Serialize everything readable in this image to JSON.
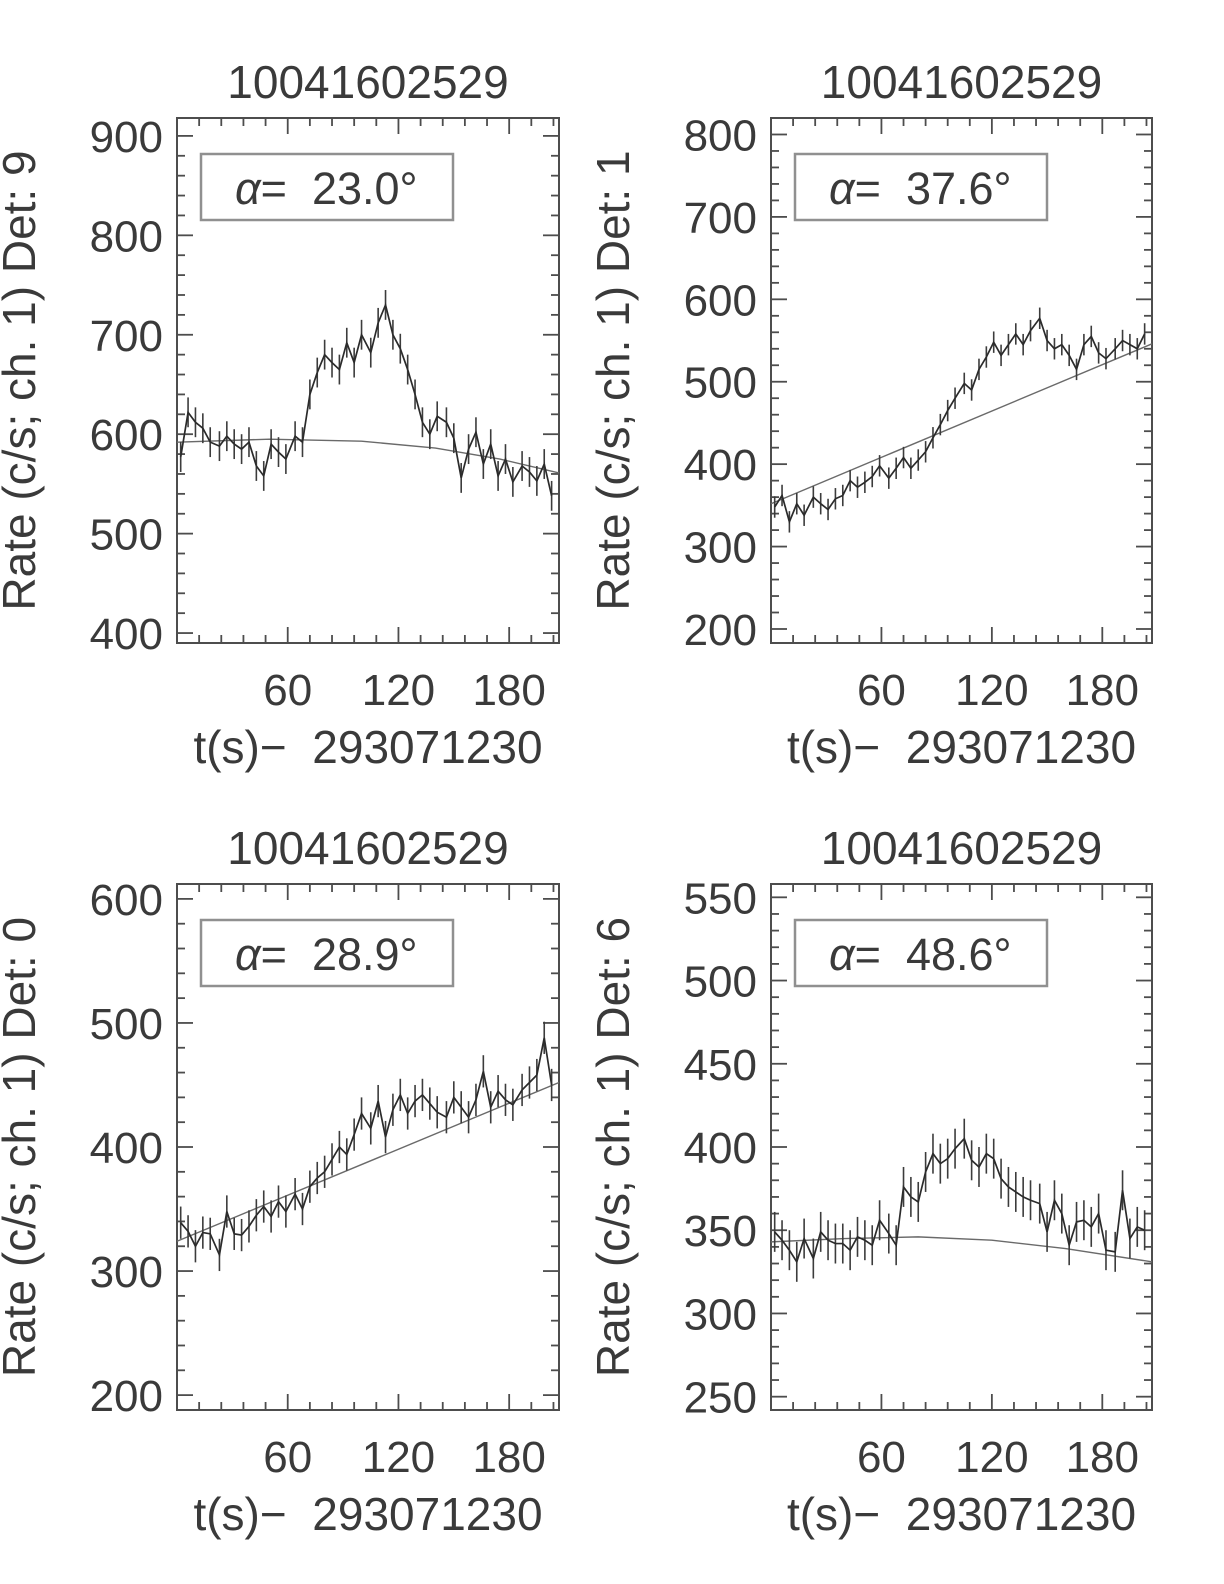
{
  "figure": {
    "background": "#ffffff",
    "data_line_color": "#2b2b2b",
    "error_bar_color": "#3c3c3c",
    "model_line_color": "#6a6a6a",
    "frame_color": "#4d4d4d",
    "text_color": "#3a3a3a",
    "annotation_box_color": "#909090"
  },
  "chart_data": [
    {
      "type": "line",
      "position": "top-left",
      "title": "10041602529",
      "ylabel": "Rate (c/s; ch. 1) Det: 9",
      "xlabel": "t(s)−  293071230",
      "annotation": "α=  23.0°",
      "xlim": [
        0,
        207
      ],
      "xticks": [
        60,
        120,
        180
      ],
      "xtick_labels": [
        "60",
        "120",
        "180"
      ],
      "x_minor": 12,
      "ylim": [
        390,
        918
      ],
      "yticks": [
        400,
        500,
        600,
        700,
        800,
        900
      ],
      "ytick_labels": [
        "400",
        "500",
        "600",
        "700",
        "800",
        "900"
      ],
      "y_minor": 20,
      "error": 15,
      "x": [
        2,
        6,
        10,
        14,
        18,
        23,
        27,
        31,
        35,
        39,
        43,
        47,
        51,
        55,
        59,
        64,
        68,
        72,
        76,
        80,
        84,
        88,
        92,
        96,
        100,
        105,
        109,
        113,
        117,
        121,
        125,
        129,
        133,
        137,
        141,
        146,
        150,
        154,
        158,
        162,
        166,
        170,
        174,
        178,
        182,
        187,
        191,
        195,
        199,
        203
      ],
      "y": [
        577,
        622,
        612,
        606,
        592,
        588,
        598,
        590,
        585,
        592,
        568,
        558,
        590,
        582,
        575,
        598,
        592,
        640,
        662,
        680,
        672,
        665,
        692,
        672,
        700,
        682,
        712,
        730,
        700,
        686,
        665,
        640,
        612,
        600,
        618,
        612,
        596,
        556,
        585,
        602,
        570,
        590,
        558,
        575,
        552,
        568,
        562,
        553,
        570,
        538
      ],
      "model": [
        [
          0,
          592
        ],
        [
          50,
          595
        ],
        [
          100,
          593
        ],
        [
          140,
          586
        ],
        [
          175,
          575
        ],
        [
          207,
          561
        ]
      ]
    },
    {
      "type": "line",
      "position": "top-right",
      "title": "10041602529",
      "ylabel": "Rate (c/s; ch. 1) Det: 1",
      "xlabel": "t(s)−  293071230",
      "annotation": "α=  37.6°",
      "xlim": [
        0,
        207
      ],
      "xticks": [
        60,
        120,
        180
      ],
      "xtick_labels": [
        "60",
        "120",
        "180"
      ],
      "x_minor": 12,
      "ylim": [
        183,
        820
      ],
      "yticks": [
        200,
        300,
        400,
        500,
        600,
        700,
        800
      ],
      "ytick_labels": [
        "200",
        "300",
        "400",
        "500",
        "600",
        "700",
        "800"
      ],
      "y_minor": 20,
      "error": 13,
      "x": [
        2,
        6,
        10,
        14,
        18,
        23,
        27,
        31,
        35,
        39,
        43,
        47,
        51,
        55,
        59,
        64,
        68,
        72,
        76,
        80,
        84,
        88,
        92,
        96,
        100,
        105,
        109,
        113,
        117,
        121,
        125,
        129,
        133,
        137,
        141,
        146,
        150,
        154,
        158,
        162,
        166,
        170,
        174,
        178,
        182,
        187,
        191,
        195,
        199,
        203
      ],
      "y": [
        348,
        362,
        330,
        352,
        338,
        360,
        352,
        345,
        358,
        362,
        380,
        372,
        378,
        385,
        398,
        383,
        395,
        408,
        395,
        405,
        415,
        432,
        448,
        465,
        480,
        498,
        490,
        515,
        530,
        548,
        532,
        545,
        558,
        545,
        562,
        577,
        550,
        540,
        545,
        532,
        515,
        545,
        555,
        535,
        528,
        540,
        550,
        545,
        540,
        558
      ],
      "model": [
        [
          0,
          352
        ],
        [
          207,
          546
        ]
      ]
    },
    {
      "type": "line",
      "position": "bottom-left",
      "title": "10041602529",
      "ylabel": "Rate (c/s; ch. 1) Det: 0",
      "xlabel": "t(s)−  293071230",
      "annotation": "α=  28.9°",
      "xlim": [
        0,
        207
      ],
      "xticks": [
        60,
        120,
        180
      ],
      "xtick_labels": [
        "60",
        "120",
        "180"
      ],
      "x_minor": 12,
      "ylim": [
        188,
        612
      ],
      "yticks": [
        200,
        300,
        400,
        500,
        600
      ],
      "ytick_labels": [
        "200",
        "300",
        "400",
        "500",
        "600"
      ],
      "y_minor": 20,
      "error": 13,
      "x": [
        2,
        6,
        10,
        14,
        18,
        23,
        27,
        31,
        35,
        39,
        43,
        47,
        51,
        55,
        59,
        64,
        68,
        72,
        76,
        80,
        84,
        88,
        92,
        96,
        100,
        105,
        109,
        113,
        117,
        121,
        125,
        129,
        133,
        137,
        141,
        146,
        150,
        154,
        158,
        162,
        166,
        170,
        174,
        178,
        182,
        187,
        191,
        195,
        199,
        203
      ],
      "y": [
        339,
        332,
        320,
        331,
        330,
        313,
        348,
        330,
        329,
        336,
        345,
        352,
        344,
        356,
        348,
        362,
        350,
        368,
        375,
        380,
        390,
        400,
        394,
        410,
        427,
        415,
        437,
        408,
        430,
        442,
        427,
        437,
        442,
        435,
        428,
        424,
        440,
        432,
        424,
        438,
        461,
        432,
        445,
        438,
        434,
        446,
        452,
        458,
        488,
        450
      ],
      "model": [
        [
          0,
          324
        ],
        [
          207,
          452
        ]
      ]
    },
    {
      "type": "line",
      "position": "bottom-right",
      "title": "10041602529",
      "ylabel": "Rate (c/s; ch. 1) Det: 6",
      "xlabel": "t(s)−  293071230",
      "annotation": "α=  48.6°",
      "xlim": [
        0,
        207
      ],
      "xticks": [
        60,
        120,
        180
      ],
      "xtick_labels": [
        "60",
        "120",
        "180"
      ],
      "x_minor": 12,
      "ylim": [
        242,
        558
      ],
      "yticks": [
        250,
        300,
        350,
        400,
        450,
        500,
        550
      ],
      "ytick_labels": [
        "250",
        "300",
        "350",
        "400",
        "450",
        "500",
        "550"
      ],
      "y_minor": 10,
      "error": 12,
      "x": [
        2,
        6,
        10,
        14,
        18,
        23,
        27,
        31,
        35,
        39,
        43,
        47,
        51,
        55,
        59,
        64,
        68,
        72,
        76,
        80,
        84,
        88,
        92,
        96,
        100,
        105,
        109,
        113,
        117,
        121,
        125,
        129,
        133,
        137,
        141,
        146,
        150,
        154,
        158,
        162,
        166,
        170,
        174,
        178,
        182,
        187,
        191,
        195,
        199,
        203
      ],
      "y": [
        349,
        344,
        338,
        331,
        345,
        333,
        349,
        344,
        342,
        342,
        338,
        346,
        344,
        341,
        356,
        348,
        341,
        376,
        370,
        367,
        385,
        396,
        390,
        393,
        399,
        405,
        392,
        388,
        396,
        393,
        381,
        376,
        373,
        370,
        368,
        366,
        349,
        368,
        360,
        341,
        355,
        356,
        352,
        360,
        338,
        337,
        374,
        345,
        352,
        350
      ],
      "model": [
        [
          0,
          343
        ],
        [
          40,
          345
        ],
        [
          80,
          346
        ],
        [
          120,
          344
        ],
        [
          160,
          339
        ],
        [
          207,
          331
        ]
      ]
    }
  ]
}
